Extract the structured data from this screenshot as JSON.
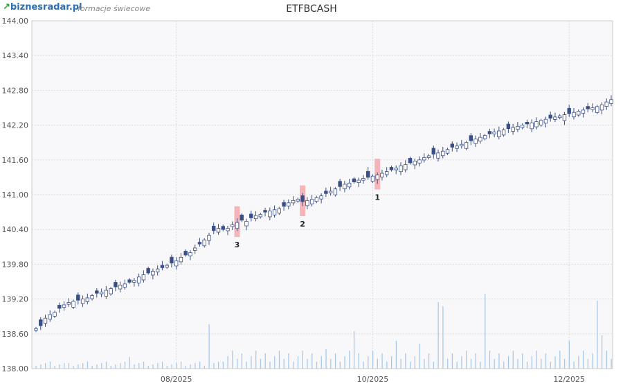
{
  "header": {
    "logo_text": "biznesradar.pl",
    "subtitle": "formacje świecowe",
    "title": "ETFBCASH"
  },
  "colors": {
    "bear": "#3b4f86",
    "bull_fill": "#ffffff",
    "bull_stroke": "#3b4f86",
    "volume": "#a9c8e8",
    "marker": "#f5b5b8",
    "grid": "#dcdcdc",
    "plot_bg": "#f8f8fa"
  },
  "chart_data": {
    "type": "candlestick",
    "title": "ETFBCASH",
    "xlabel": "",
    "ylabel": "",
    "ylim": [
      138.0,
      144.0
    ],
    "y_ticks": [
      "144.00",
      "143.40",
      "142.80",
      "142.20",
      "141.60",
      "141.00",
      "140.40",
      "139.80",
      "139.20",
      "138.60",
      "138.00"
    ],
    "x_ticks": [
      {
        "label": "08/2025",
        "index": 30
      },
      {
        "label": "10/2025",
        "index": 72
      },
      {
        "label": "12/2025",
        "index": 114
      }
    ],
    "grid": true,
    "closes": [
      138.69,
      138.74,
      138.87,
      138.93,
      138.97,
      139.04,
      139.1,
      139.14,
      139.16,
      139.18,
      139.2,
      139.22,
      139.26,
      139.3,
      139.32,
      139.35,
      139.38,
      139.41,
      139.44,
      139.46,
      139.49,
      139.52,
      139.58,
      139.62,
      139.65,
      139.68,
      139.72,
      139.74,
      139.78,
      139.82,
      139.86,
      139.92,
      139.96,
      140.0,
      140.08,
      140.15,
      140.22,
      140.3,
      140.38,
      140.42,
      140.4,
      140.42,
      140.48,
      140.52,
      140.56,
      140.54,
      140.6,
      140.64,
      140.66,
      140.7,
      140.72,
      140.74,
      140.76,
      140.8,
      140.86,
      140.9,
      140.92,
      140.88,
      140.9,
      140.92,
      140.95,
      140.98,
      141.02,
      141.06,
      141.1,
      141.14,
      141.18,
      141.2,
      141.22,
      141.25,
      141.28,
      141.3,
      141.32,
      141.34,
      141.37,
      141.4,
      141.43,
      141.46,
      141.5,
      141.52,
      141.55,
      141.58,
      141.6,
      141.64,
      141.67,
      141.7,
      141.72,
      141.75,
      141.78,
      141.82,
      141.84,
      141.87,
      141.9,
      141.93,
      141.96,
      141.99,
      142.02,
      142.05,
      142.08,
      142.1,
      142.12,
      142.14,
      142.16,
      142.18,
      142.2,
      142.22,
      142.24,
      142.26,
      142.28,
      142.3,
      142.32,
      142.34,
      142.36,
      142.38,
      142.4,
      142.42,
      142.44,
      142.46,
      142.48,
      142.5,
      142.52,
      142.55,
      142.6,
      142.64
    ],
    "bearish": [
      1,
      5,
      9,
      13,
      17,
      20,
      24,
      27,
      29,
      32,
      35,
      38,
      40,
      44,
      46,
      49,
      53,
      57,
      62,
      65,
      68,
      71,
      76,
      80,
      85,
      89,
      93,
      97,
      101,
      105,
      110,
      114,
      118
    ],
    "markers": [
      {
        "label": "3",
        "index": 43
      },
      {
        "label": "2",
        "index": 57
      },
      {
        "label": "1",
        "index": 73
      }
    ],
    "volume": [
      {
        "index": 7,
        "value": 8
      },
      {
        "index": 20,
        "value": 17
      },
      {
        "index": 37,
        "value": 64
      },
      {
        "index": 62,
        "value": 28
      },
      {
        "index": 68,
        "value": 54
      },
      {
        "index": 77,
        "value": 40
      },
      {
        "index": 82,
        "value": 36
      },
      {
        "index": 86,
        "value": 96
      },
      {
        "index": 87,
        "value": 90
      },
      {
        "index": 96,
        "value": 108
      },
      {
        "index": 114,
        "value": 40
      },
      {
        "index": 120,
        "value": 98
      },
      {
        "index": 121,
        "value": 48
      }
    ]
  }
}
